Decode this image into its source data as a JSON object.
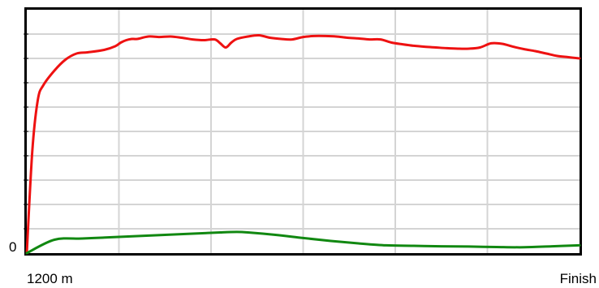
{
  "chart_data": {
    "type": "line",
    "title": "",
    "xlabel": "",
    "ylabel": "",
    "x_tick_labels": [
      "1200 m",
      "Finish"
    ],
    "y_tick_labels": [
      "0"
    ],
    "xlim": [
      0,
      100
    ],
    "ylim": [
      0,
      10
    ],
    "grid": true,
    "legend": "none",
    "series": [
      {
        "color": "#ee1111",
        "x": [
          0,
          1,
          2,
          3,
          5,
          7,
          9,
          11,
          14,
          16,
          17,
          18,
          19,
          20,
          22,
          24,
          26,
          28,
          30,
          32,
          34,
          35,
          36,
          37,
          38,
          40,
          42,
          44,
          46,
          48,
          50,
          52,
          54,
          56,
          58,
          60,
          62,
          64,
          66,
          68,
          70,
          72,
          74,
          76,
          78,
          80,
          82,
          84,
          86,
          88,
          90,
          92,
          94,
          96,
          98,
          100
        ],
        "y": [
          0,
          4.2,
          6.3,
          6.9,
          7.5,
          7.95,
          8.2,
          8.25,
          8.35,
          8.5,
          8.65,
          8.75,
          8.8,
          8.8,
          8.9,
          8.88,
          8.9,
          8.85,
          8.78,
          8.75,
          8.78,
          8.62,
          8.45,
          8.65,
          8.8,
          8.9,
          8.95,
          8.85,
          8.8,
          8.78,
          8.88,
          8.92,
          8.92,
          8.9,
          8.85,
          8.82,
          8.78,
          8.78,
          8.65,
          8.58,
          8.52,
          8.48,
          8.45,
          8.42,
          8.4,
          8.4,
          8.45,
          8.62,
          8.6,
          8.48,
          8.38,
          8.3,
          8.2,
          8.1,
          8.05,
          8.0
        ]
      },
      {
        "color": "#118811",
        "x": [
          0,
          5,
          10,
          15,
          20,
          25,
          30,
          35,
          38,
          40,
          45,
          50,
          55,
          60,
          65,
          70,
          75,
          80,
          85,
          90,
          95,
          100
        ],
        "y": [
          0,
          0.55,
          0.6,
          0.65,
          0.7,
          0.75,
          0.8,
          0.85,
          0.87,
          0.85,
          0.75,
          0.62,
          0.5,
          0.4,
          0.32,
          0.3,
          0.28,
          0.27,
          0.25,
          0.24,
          0.28,
          0.32
        ]
      }
    ]
  }
}
